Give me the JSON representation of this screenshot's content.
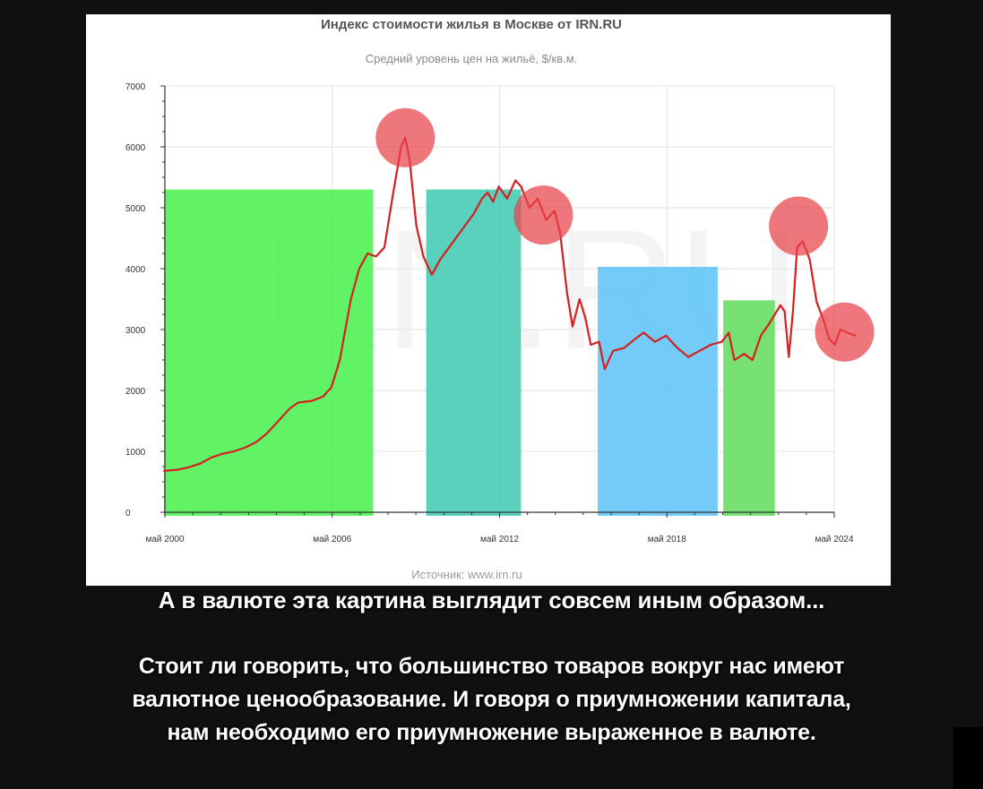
{
  "chart_data": {
    "type": "line",
    "title": "Индекс стоимости жилья в Москве от IRN.RU",
    "subtitle": "Средний уровень цен на жильё, $/кв.м.",
    "source": "Источник: www.irn.ru",
    "watermark": "IRN.RU",
    "ylabel": "",
    "xlabel": "",
    "ylim": [
      0,
      7000
    ],
    "xlim": [
      2000.33,
      2024.33
    ],
    "y_ticks": [
      0,
      1000,
      2000,
      3000,
      4000,
      5000,
      6000,
      7000
    ],
    "x_ticks": [
      {
        "value": 2000.33,
        "label": "май 2000"
      },
      {
        "value": 2006.33,
        "label": "май 2006"
      },
      {
        "value": 2012.33,
        "label": "май 2012"
      },
      {
        "value": 2018.33,
        "label": "май 2018"
      },
      {
        "value": 2024.33,
        "label": "май 2024"
      }
    ],
    "grid": true,
    "series": [
      {
        "color": "#d42020",
        "points": [
          [
            2000.3,
            680
          ],
          [
            2000.8,
            700
          ],
          [
            2001.2,
            740
          ],
          [
            2001.6,
            800
          ],
          [
            2002.0,
            900
          ],
          [
            2002.4,
            960
          ],
          [
            2002.8,
            1000
          ],
          [
            2003.2,
            1060
          ],
          [
            2003.6,
            1150
          ],
          [
            2004.0,
            1300
          ],
          [
            2004.4,
            1500
          ],
          [
            2004.8,
            1700
          ],
          [
            2005.1,
            1800
          ],
          [
            2005.6,
            1830
          ],
          [
            2006.0,
            1900
          ],
          [
            2006.3,
            2050
          ],
          [
            2006.6,
            2500
          ],
          [
            2006.8,
            3000
          ],
          [
            2007.0,
            3500
          ],
          [
            2007.3,
            4000
          ],
          [
            2007.6,
            4250
          ],
          [
            2007.9,
            4200
          ],
          [
            2008.2,
            4350
          ],
          [
            2008.5,
            5200
          ],
          [
            2008.8,
            6000
          ],
          [
            2008.95,
            6150
          ],
          [
            2009.1,
            5800
          ],
          [
            2009.35,
            4700
          ],
          [
            2009.6,
            4200
          ],
          [
            2009.9,
            3900
          ],
          [
            2010.2,
            4150
          ],
          [
            2010.6,
            4400
          ],
          [
            2011.0,
            4650
          ],
          [
            2011.4,
            4900
          ],
          [
            2011.7,
            5150
          ],
          [
            2011.9,
            5250
          ],
          [
            2012.1,
            5100
          ],
          [
            2012.3,
            5350
          ],
          [
            2012.6,
            5150
          ],
          [
            2012.9,
            5450
          ],
          [
            2013.1,
            5350
          ],
          [
            2013.4,
            5000
          ],
          [
            2013.7,
            5150
          ],
          [
            2014.0,
            4800
          ],
          [
            2014.3,
            4950
          ],
          [
            2014.5,
            4600
          ],
          [
            2014.75,
            3600
          ],
          [
            2014.95,
            3050
          ],
          [
            2015.2,
            3500
          ],
          [
            2015.4,
            3200
          ],
          [
            2015.6,
            2750
          ],
          [
            2015.9,
            2800
          ],
          [
            2016.1,
            2350
          ],
          [
            2016.4,
            2650
          ],
          [
            2016.8,
            2700
          ],
          [
            2017.2,
            2850
          ],
          [
            2017.5,
            2950
          ],
          [
            2017.9,
            2800
          ],
          [
            2018.3,
            2900
          ],
          [
            2018.7,
            2700
          ],
          [
            2019.1,
            2550
          ],
          [
            2019.5,
            2650
          ],
          [
            2019.9,
            2750
          ],
          [
            2020.3,
            2800
          ],
          [
            2020.55,
            2950
          ],
          [
            2020.75,
            2500
          ],
          [
            2021.1,
            2600
          ],
          [
            2021.4,
            2500
          ],
          [
            2021.7,
            2900
          ],
          [
            2022.0,
            3100
          ],
          [
            2022.2,
            3250
          ],
          [
            2022.4,
            3400
          ],
          [
            2022.55,
            3300
          ],
          [
            2022.7,
            2550
          ],
          [
            2022.85,
            3300
          ],
          [
            2023.0,
            4350
          ],
          [
            2023.2,
            4450
          ],
          [
            2023.45,
            4150
          ],
          [
            2023.7,
            3450
          ],
          [
            2023.95,
            3150
          ],
          [
            2024.15,
            2850
          ],
          [
            2024.35,
            2750
          ],
          [
            2024.55,
            3000
          ],
          [
            2024.8,
            2950
          ],
          [
            2025.1,
            2900
          ]
        ]
      }
    ],
    "highlight_bands": [
      {
        "from": 2000.3,
        "to": 2007.8,
        "top": 5300,
        "color": "#46f04a"
      },
      {
        "from": 2009.7,
        "to": 2013.1,
        "top": 5300,
        "color": "#3cc9b2"
      },
      {
        "from": 2015.85,
        "to": 2020.15,
        "top": 4030,
        "color": "#5bc3f7"
      },
      {
        "from": 2020.35,
        "to": 2022.2,
        "top": 3480,
        "color": "#5fdc5a"
      }
    ],
    "peak_markers": [
      {
        "x": 2008.95,
        "y": 6150
      },
      {
        "x": 2013.9,
        "y": 4880
      },
      {
        "x": 2023.05,
        "y": 4700
      },
      {
        "x": 2024.7,
        "y": 2960
      }
    ]
  },
  "caption": {
    "headline": "А в валюте эта картина выглядит совсем иным образом...",
    "lines": [
      "Стоит ли говорить, что большинство товаров вокруг нас имеют",
      "валютное ценообразование. И говоря о приумножении капитала,",
      "нам необходимо его приумножение выраженное в валюте."
    ]
  }
}
